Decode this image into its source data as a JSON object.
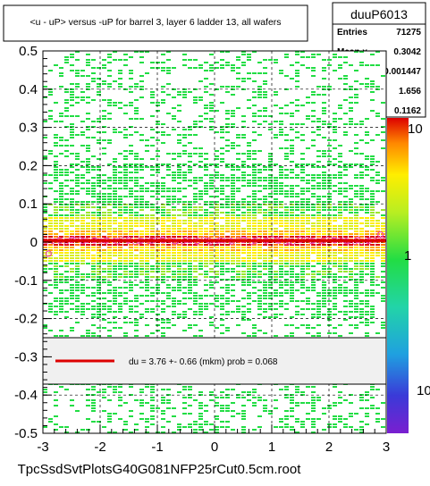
{
  "title": "<u - uP>       versus  -uP for barrel 3, layer 6 ladder 13, all wafers",
  "footer": "TpcSsdSvtPlotsG40G081NFP25rCut0.5cm.root",
  "stats": {
    "name": "duuP6013",
    "rows": [
      {
        "label": "Entries",
        "value": "71275"
      },
      {
        "label": "Mean x",
        "value": "0.3042"
      },
      {
        "label": "Mean y",
        "value": "-0.001447"
      },
      {
        "label": "RMS x",
        "value": "1.656"
      },
      {
        "label": "RMS y",
        "value": "0.1162"
      }
    ]
  },
  "fit_legend": {
    "text": "du =    3.76 +-  0.66 (mkm) prob = 0.068",
    "line_color": "#dd0000"
  },
  "colors": {
    "frame": "#000000",
    "low": "#22dd44",
    "mid": "#ffee00",
    "high": "#dd0000",
    "profile_marker": "#ee44aa"
  },
  "chart_data": {
    "type": "heatmap",
    "title": "<u - uP>       versus  -uP for barrel 3, layer 6 ladder 13, all wafers",
    "xlabel": "",
    "ylabel": "",
    "xlim": [
      -3,
      3
    ],
    "ylim": [
      -0.5,
      0.5
    ],
    "x_ticks": [
      "-3",
      "-2",
      "-1",
      "0",
      "1",
      "2",
      "3"
    ],
    "y_ticks": [
      "-0.5",
      "-0.4",
      "-0.3",
      "-0.2",
      "-0.1",
      "0",
      "0.1",
      "0.2",
      "0.3",
      "0.4",
      "0.5"
    ],
    "z_scale": "log",
    "z_ticks": [
      "10",
      "1",
      "10"
    ],
    "grid": true,
    "profile": {
      "x": [
        -2.9,
        -2.7,
        -2.5,
        -2.3,
        -2.1,
        -1.9,
        -1.7,
        -1.5,
        -1.3,
        -1.1,
        -0.9,
        -0.7,
        -0.5,
        -0.3,
        -0.1,
        0.1,
        0.3,
        0.5,
        0.7,
        0.9,
        1.1,
        1.3,
        1.5,
        1.7,
        1.9,
        2.1,
        2.3,
        2.5,
        2.7,
        2.9
      ],
      "y": [
        -0.03,
        0.004,
        0.006,
        0.003,
        0.005,
        0.004,
        0.002,
        0.006,
        0.003,
        0.004,
        0.005,
        0.002,
        0.006,
        0.003,
        0.004,
        0.005,
        0.001,
        0.006,
        0.003,
        0.004,
        0.005,
        0.002,
        0.006,
        0.003,
        0.004,
        0.005,
        0.003,
        0.006,
        0.004,
        0.02
      ]
    },
    "fit": {
      "y": 0.00376,
      "label": "du =    3.76 +-  0.66 (mkm) prob = 0.068"
    }
  }
}
